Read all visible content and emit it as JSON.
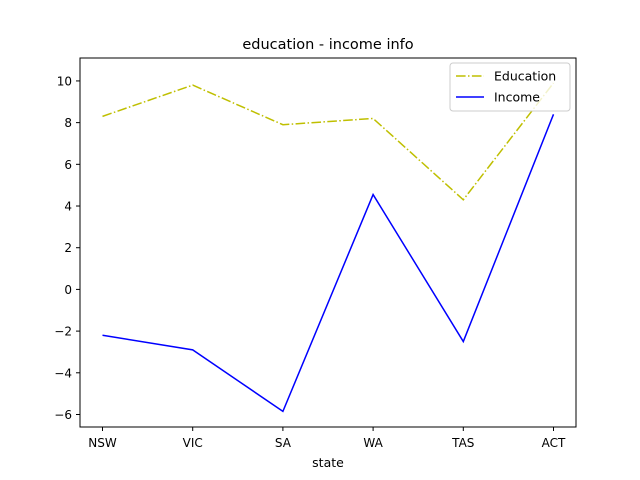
{
  "chart_data": {
    "type": "line",
    "title": "education - income info",
    "xlabel": "state",
    "ylabel": "",
    "categories": [
      "NSW",
      "VIC",
      "SA",
      "WA",
      "TAS",
      "ACT"
    ],
    "ylim": [
      -6.6,
      11.1
    ],
    "yticks": [
      -6,
      -4,
      -2,
      0,
      2,
      4,
      6,
      8,
      10
    ],
    "grid": false,
    "legend_position": "top-right",
    "series": [
      {
        "name": "Education",
        "values": [
          8.3,
          9.8,
          7.9,
          8.2,
          4.3,
          9.9
        ],
        "color": "#bfbf00",
        "linestyle": "dashdot"
      },
      {
        "name": "Income",
        "values": [
          -2.2,
          -2.9,
          -5.85,
          4.55,
          -2.5,
          8.4
        ],
        "color": "#0000ff",
        "linestyle": "solid"
      }
    ]
  }
}
